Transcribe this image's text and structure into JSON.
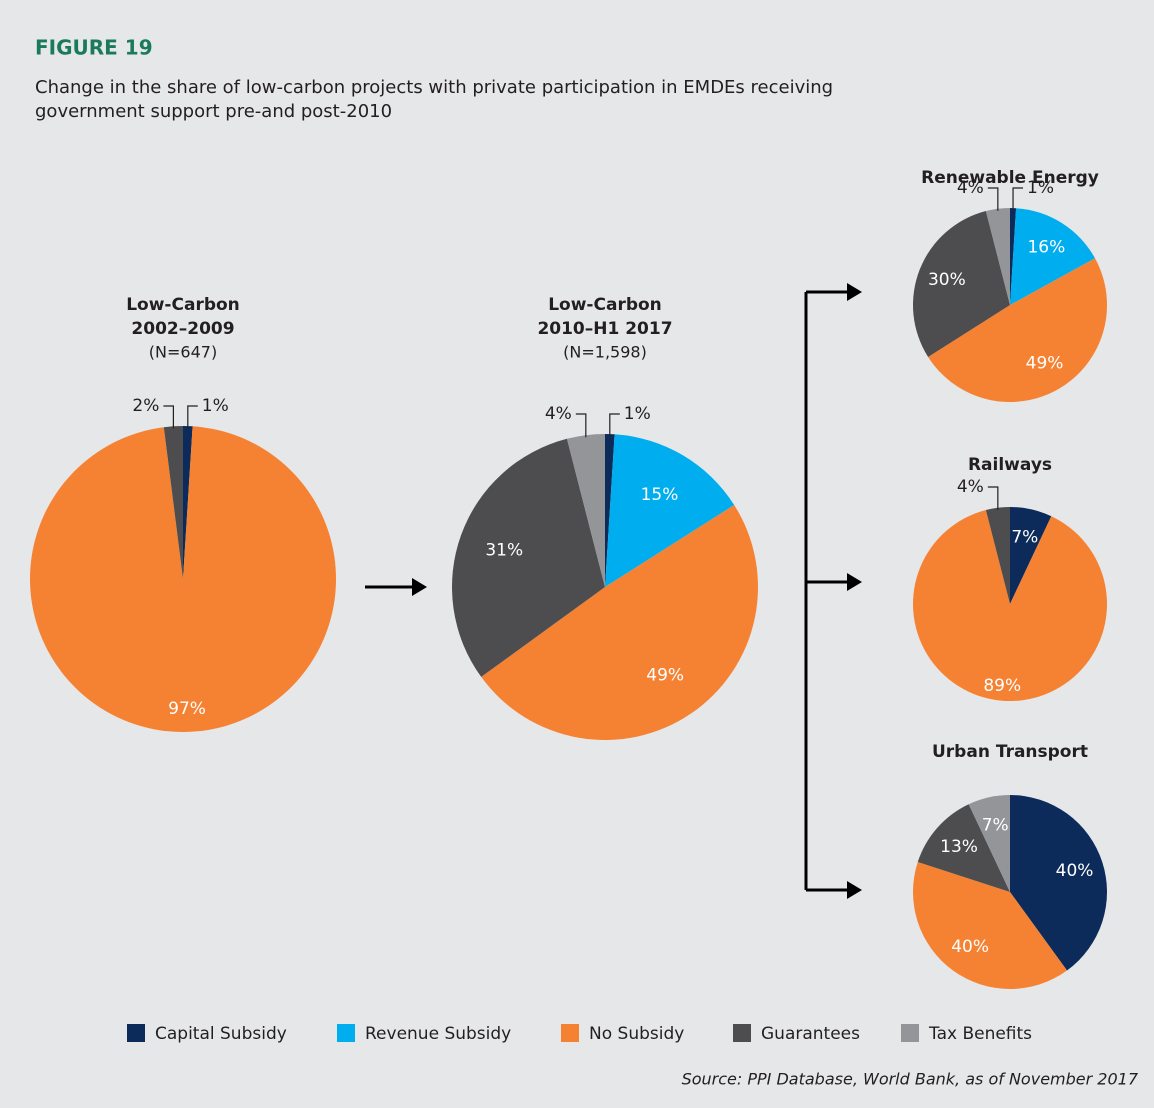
{
  "header": {
    "label": "FIGURE 19",
    "title": [
      "Change in the share of low-carbon projects with private participation in EMDEs receiving",
      "government support pre-and post-2010"
    ]
  },
  "chart_data": [
    {
      "type": "pie",
      "title": [
        "Low-Carbon",
        "2002–2009"
      ],
      "note": "(N=647)",
      "categories": [
        "Capital Subsidy",
        "No Subsidy",
        "Guarantees"
      ],
      "values": [
        1,
        97,
        2
      ],
      "value_labels": [
        "1%",
        "97%",
        "2%"
      ],
      "colors": [
        "#0d2b5a",
        "#f58233",
        "#4d4d4f"
      ]
    },
    {
      "type": "pie",
      "title": [
        "Low-Carbon",
        "2010–H1 2017"
      ],
      "note": "(N=1,598)",
      "categories": [
        "Capital Subsidy",
        "Revenue Subsidy",
        "No Subsidy",
        "Guarantees",
        "Tax Benefits"
      ],
      "values": [
        1,
        15,
        49,
        31,
        4
      ],
      "value_labels": [
        "1%",
        "15%",
        "49%",
        "31%",
        "4%"
      ],
      "colors": [
        "#0d2b5a",
        "#00aeef",
        "#f58233",
        "#4d4d4f",
        "#939598"
      ]
    },
    {
      "type": "pie",
      "title": [
        "Renewable Energy"
      ],
      "categories": [
        "Capital Subsidy",
        "Revenue Subsidy",
        "No Subsidy",
        "Guarantees",
        "Tax Benefits"
      ],
      "values": [
        1,
        16,
        49,
        30,
        4
      ],
      "value_labels": [
        "1%",
        "16%",
        "49%",
        "30%",
        "4%"
      ],
      "colors": [
        "#0d2b5a",
        "#00aeef",
        "#f58233",
        "#4d4d4f",
        "#939598"
      ]
    },
    {
      "type": "pie",
      "title": [
        "Railways"
      ],
      "categories": [
        "Capital Subsidy",
        "No Subsidy",
        "Guarantees"
      ],
      "values": [
        7,
        89,
        4
      ],
      "value_labels": [
        "7%",
        "89%",
        "4%"
      ],
      "colors": [
        "#0d2b5a",
        "#f58233",
        "#4d4d4f"
      ]
    },
    {
      "type": "pie",
      "title": [
        "Urban Transport"
      ],
      "categories": [
        "Capital Subsidy",
        "No Subsidy",
        "Guarantees",
        "Tax Benefits"
      ],
      "values": [
        40,
        40,
        13,
        7
      ],
      "value_labels": [
        "40%",
        "40%",
        "13%",
        "7%"
      ],
      "colors": [
        "#0d2b5a",
        "#f58233",
        "#4d4d4f",
        "#939598"
      ]
    }
  ],
  "legend": [
    {
      "name": "Capital Subsidy",
      "color": "#0d2b5a"
    },
    {
      "name": "Revenue Subsidy",
      "color": "#00aeef"
    },
    {
      "name": "No Subsidy",
      "color": "#f58233"
    },
    {
      "name": "Guarantees",
      "color": "#4d4d4f"
    },
    {
      "name": "Tax Benefits",
      "color": "#939598"
    }
  ],
  "source": "Source: PPI Database, World Bank, as of November 2017"
}
